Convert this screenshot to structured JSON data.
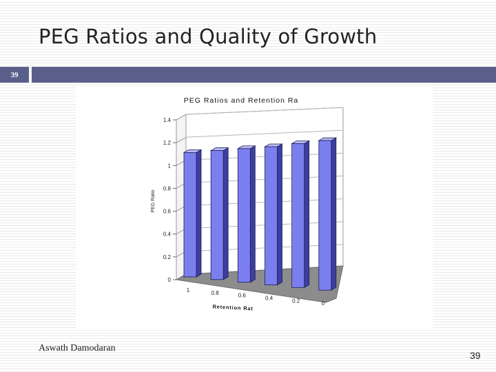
{
  "slide": {
    "title": "PEG Ratios and Quality of Growth",
    "number_badge": "39",
    "author": "Aswath Damodaran",
    "page_number": "39"
  },
  "colors": {
    "header_bar": "#5a5f8a",
    "bar_front": "#7b7fee",
    "bar_side": "#3c3fa0",
    "bar_top": "#b9bbf7",
    "floor": "#8c8c8c",
    "wall": "#ffffff"
  },
  "chart_data": {
    "type": "bar",
    "title": "PEG Ratios and Retention Ra",
    "xlabel": "Retention Rat",
    "ylabel": "PEG Ratio",
    "categories": [
      "1",
      "0.8",
      "0.6",
      "0.4",
      "0.2",
      "0"
    ],
    "values": [
      1.09,
      1.13,
      1.17,
      1.21,
      1.26,
      1.31
    ],
    "ylim": [
      0,
      1.4
    ],
    "yticks": [
      "0",
      "0.2",
      "0.4",
      "0.6",
      "0.8",
      "1",
      "1.2",
      "1.4"
    ],
    "grid": true,
    "legend": "none",
    "style": "3d"
  }
}
